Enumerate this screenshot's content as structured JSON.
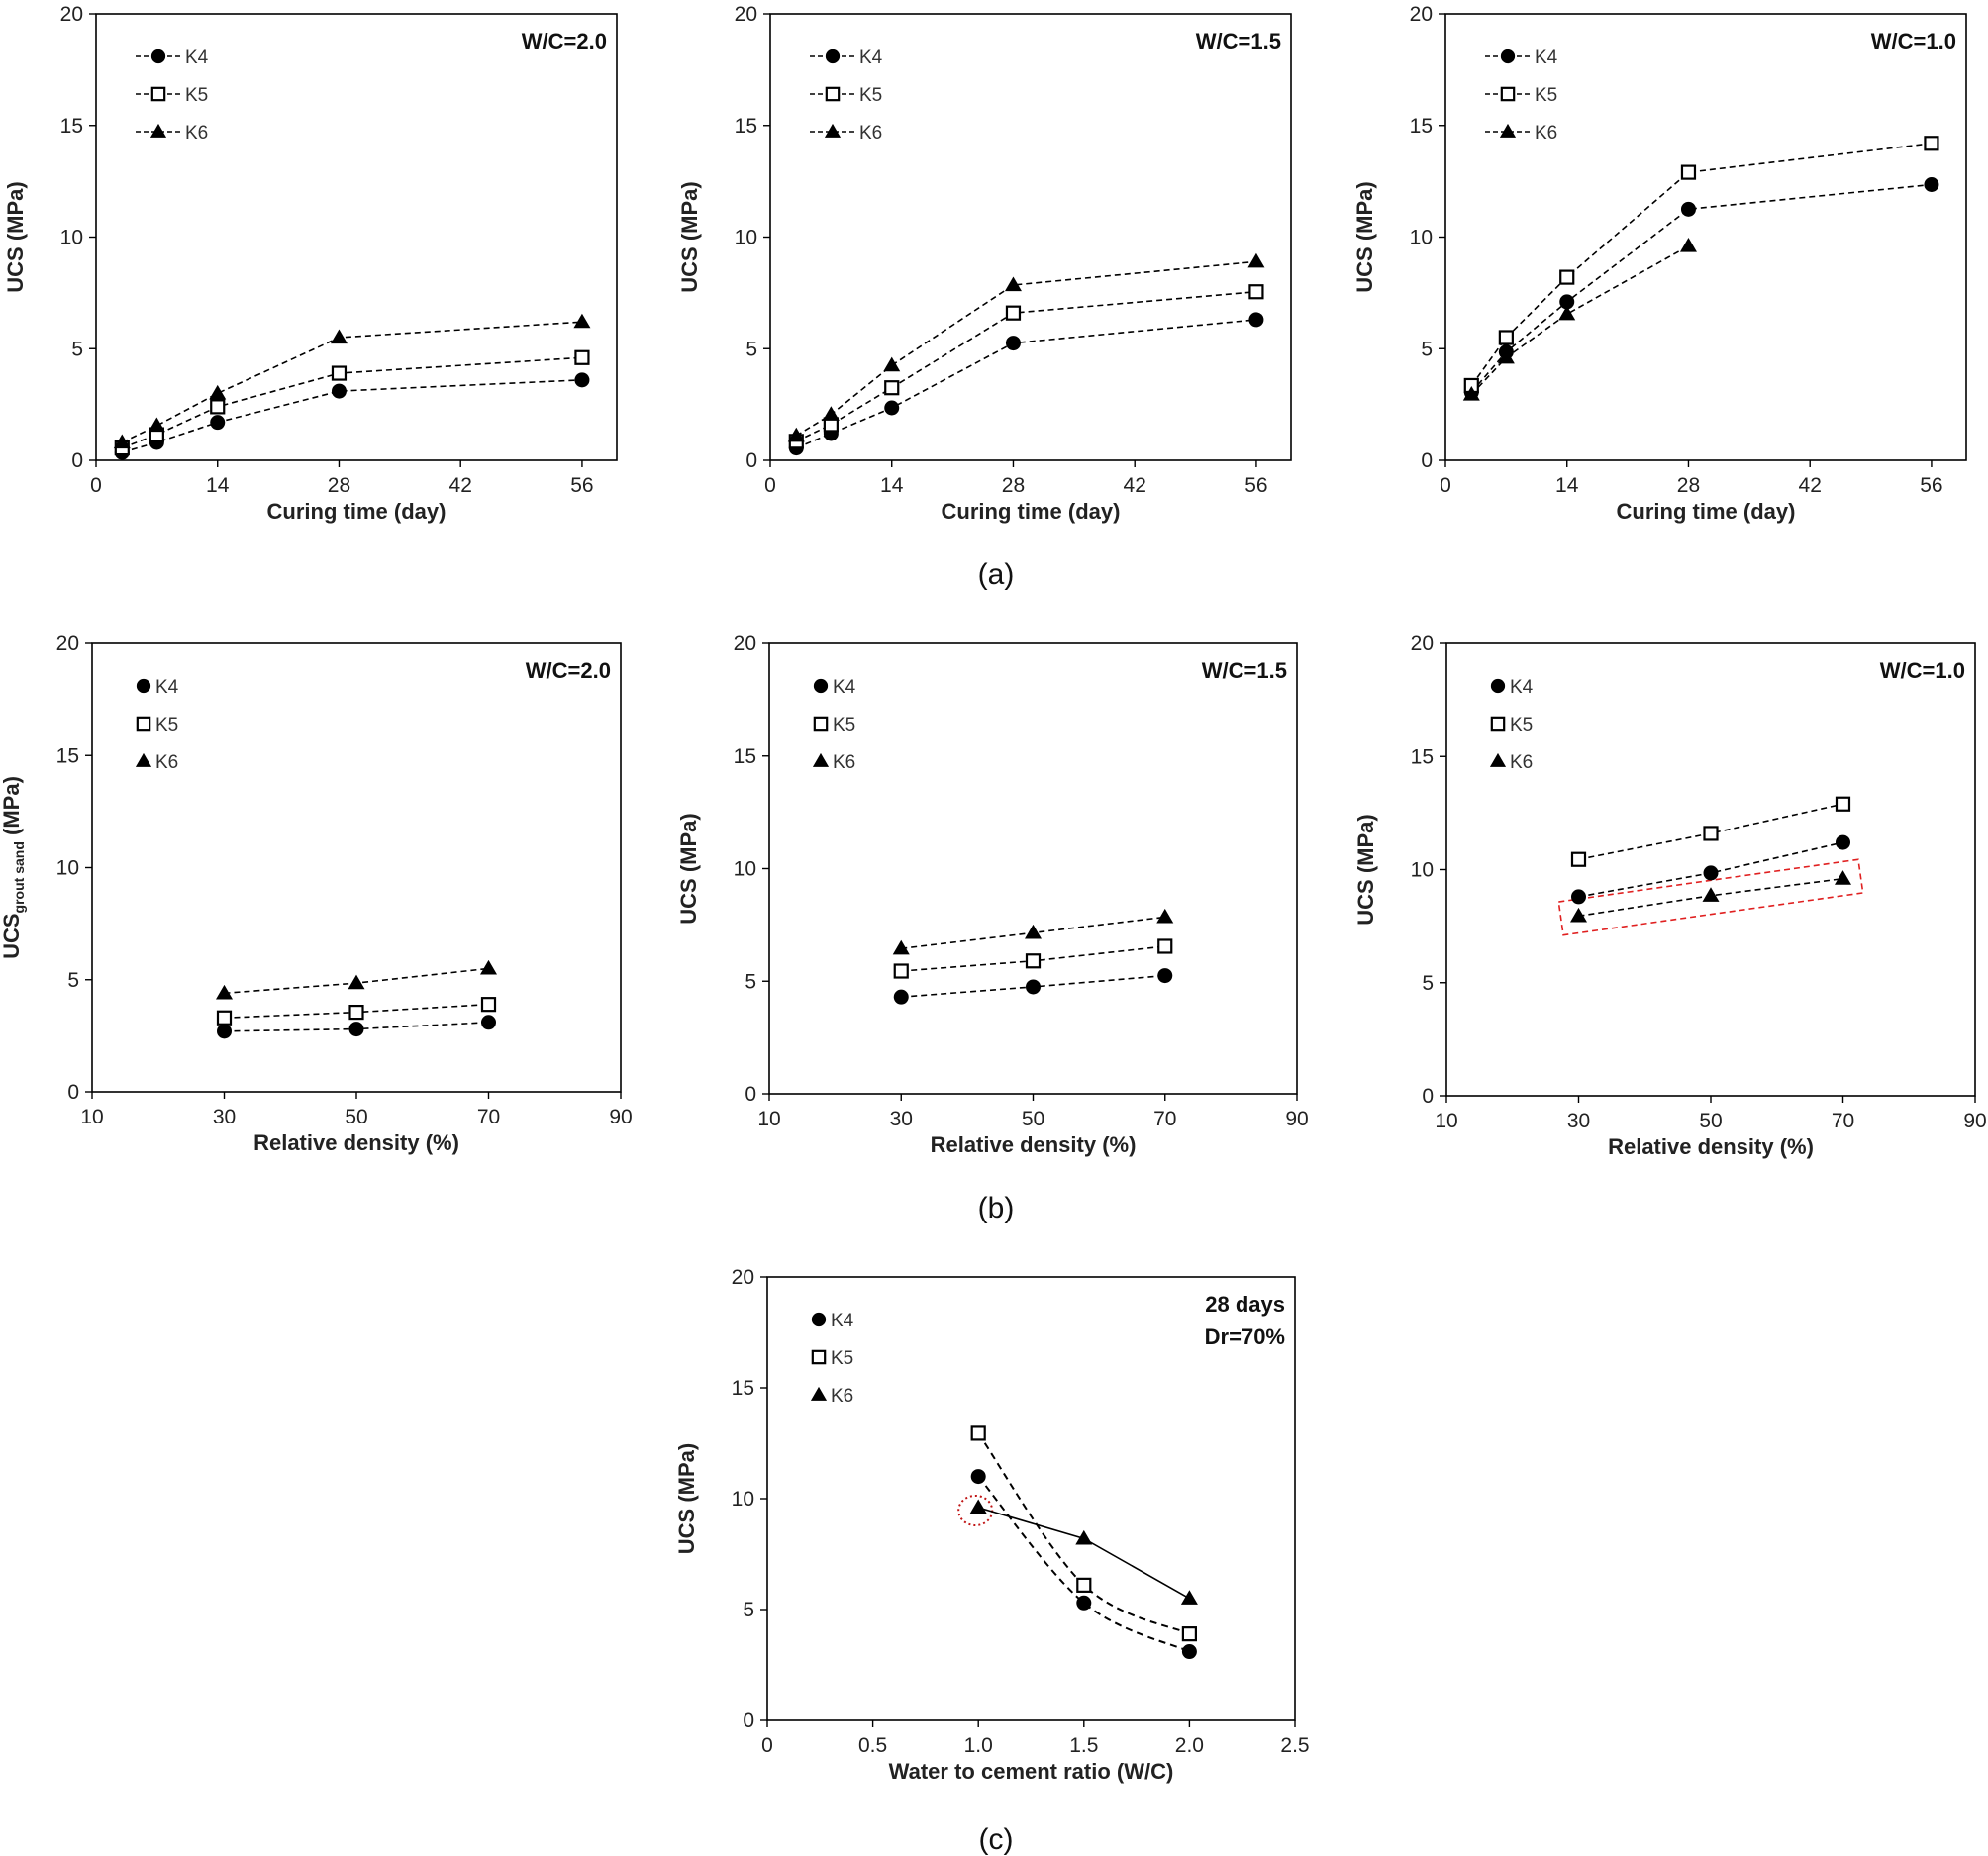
{
  "colors": {
    "marker": "#000000",
    "highlight": "#e02020",
    "circle_highlight": "#c01515"
  },
  "captions": [
    "(a)",
    "(b)",
    "(c)"
  ],
  "chart_data": [
    {
      "type": "line",
      "panel": "(a)",
      "annotation": [
        "W/C=2.0"
      ],
      "xlabel": "Curing time (day)",
      "ylabel": "UCS (MPa)",
      "xlim": [
        0,
        60
      ],
      "ylim": [
        0,
        20
      ],
      "xticks": [
        0,
        14,
        28,
        42,
        56
      ],
      "yticks": [
        0,
        5,
        10,
        15,
        20
      ],
      "legend": "top-left",
      "series": [
        {
          "name": "K4",
          "marker": "circle-filled",
          "line": "dashed",
          "x": [
            3,
            7,
            14,
            28,
            56
          ],
          "y": [
            0.35,
            0.8,
            1.7,
            3.1,
            3.6
          ]
        },
        {
          "name": "K5",
          "marker": "square-open",
          "line": "dashed",
          "x": [
            3,
            7,
            14,
            28,
            56
          ],
          "y": [
            0.55,
            1.15,
            2.4,
            3.9,
            4.6
          ]
        },
        {
          "name": "K6",
          "marker": "triangle-filled",
          "line": "dashed",
          "x": [
            3,
            7,
            14,
            28,
            56
          ],
          "y": [
            0.8,
            1.55,
            3.0,
            5.5,
            6.2
          ]
        }
      ]
    },
    {
      "type": "line",
      "panel": "(a)",
      "annotation": [
        "W/C=1.5"
      ],
      "xlabel": "Curing time (day)",
      "ylabel": "UCS (MPa)",
      "xlim": [
        0,
        60
      ],
      "ylim": [
        0,
        20
      ],
      "xticks": [
        0,
        14,
        28,
        42,
        56
      ],
      "yticks": [
        0,
        5,
        10,
        15,
        20
      ],
      "legend": "top-left",
      "series": [
        {
          "name": "K4",
          "marker": "circle-filled",
          "line": "dashed",
          "x": [
            3,
            7,
            14,
            28,
            56
          ],
          "y": [
            0.55,
            1.2,
            2.35,
            5.25,
            6.3
          ]
        },
        {
          "name": "K5",
          "marker": "square-open",
          "line": "dashed",
          "x": [
            3,
            7,
            14,
            28,
            56
          ],
          "y": [
            0.85,
            1.6,
            3.25,
            6.6,
            7.55
          ]
        },
        {
          "name": "K6",
          "marker": "triangle-filled",
          "line": "dashed",
          "x": [
            3,
            7,
            14,
            28,
            56
          ],
          "y": [
            1.1,
            2.05,
            4.25,
            7.85,
            8.9
          ]
        }
      ]
    },
    {
      "type": "line",
      "panel": "(a)",
      "annotation": [
        "W/C=1.0"
      ],
      "xlabel": "Curing time (day)",
      "ylabel": "UCS (MPa)",
      "xlim": [
        0,
        60
      ],
      "ylim": [
        0,
        20
      ],
      "xticks": [
        0,
        14,
        28,
        42,
        56
      ],
      "yticks": [
        0,
        5,
        10,
        15,
        20
      ],
      "legend": "top-left",
      "series": [
        {
          "name": "K4",
          "marker": "circle-filled",
          "line": "dashed",
          "x": [
            3,
            7,
            14,
            28,
            56
          ],
          "y": [
            3.05,
            4.85,
            7.1,
            11.25,
            12.35
          ]
        },
        {
          "name": "K5",
          "marker": "square-open",
          "line": "dashed",
          "x": [
            3,
            7,
            14,
            28,
            56
          ],
          "y": [
            3.35,
            5.5,
            8.2,
            12.9,
            14.2
          ]
        },
        {
          "name": "K6",
          "marker": "triangle-filled",
          "line": "dashed",
          "x": [
            3,
            7,
            14,
            28,
            56
          ],
          "y": [
            2.95,
            4.6,
            6.55,
            9.6,
            null
          ]
        }
      ]
    },
    {
      "type": "line",
      "panel": "(b)",
      "annotation": [
        "W/C=2.0"
      ],
      "xlabel": "Relative density (%)",
      "ylabel": "UCS",
      "ylabel_subscript": "grout sand",
      "ylabel_suffix": " (MPa)",
      "xlim": [
        10,
        90
      ],
      "ylim": [
        0,
        20
      ],
      "xticks": [
        10,
        30,
        50,
        70,
        90
      ],
      "yticks": [
        0,
        5,
        10,
        15,
        20
      ],
      "legend": "top-left",
      "series": [
        {
          "name": "K4",
          "marker": "circle-filled",
          "line": "dashed",
          "x": [
            30,
            50,
            70
          ],
          "y": [
            2.7,
            2.8,
            3.1
          ]
        },
        {
          "name": "K5",
          "marker": "square-open",
          "line": "dashed",
          "x": [
            30,
            50,
            70
          ],
          "y": [
            3.3,
            3.55,
            3.9
          ]
        },
        {
          "name": "K6",
          "marker": "triangle-filled",
          "line": "dashed",
          "x": [
            30,
            50,
            70
          ],
          "y": [
            4.4,
            4.85,
            5.5
          ]
        }
      ]
    },
    {
      "type": "line",
      "panel": "(b)",
      "annotation": [
        "W/C=1.5"
      ],
      "xlabel": "Relative density (%)",
      "ylabel": "UCS (MPa)",
      "xlim": [
        10,
        90
      ],
      "ylim": [
        0,
        20
      ],
      "xticks": [
        10,
        30,
        50,
        70,
        90
      ],
      "yticks": [
        0,
        5,
        10,
        15,
        20
      ],
      "legend": "top-left",
      "series": [
        {
          "name": "K4",
          "marker": "circle-filled",
          "line": "dashed",
          "x": [
            30,
            50,
            70
          ],
          "y": [
            4.3,
            4.75,
            5.25
          ]
        },
        {
          "name": "K5",
          "marker": "square-open",
          "line": "dashed",
          "x": [
            30,
            50,
            70
          ],
          "y": [
            5.45,
            5.9,
            6.55
          ]
        },
        {
          "name": "K6",
          "marker": "triangle-filled",
          "line": "dashed",
          "x": [
            30,
            50,
            70
          ],
          "y": [
            6.45,
            7.15,
            7.85
          ]
        }
      ]
    },
    {
      "type": "line",
      "panel": "(b)",
      "annotation": [
        "W/C=1.0"
      ],
      "xlabel": "Relative density (%)",
      "ylabel": "UCS (MPa)",
      "xlim": [
        10,
        90
      ],
      "ylim": [
        0,
        20
      ],
      "xticks": [
        10,
        30,
        50,
        70,
        90
      ],
      "yticks": [
        0,
        5,
        10,
        15,
        20
      ],
      "legend": "top-left",
      "highlight_series": "K6",
      "series": [
        {
          "name": "K4",
          "marker": "circle-filled",
          "line": "dashed",
          "x": [
            30,
            50,
            70
          ],
          "y": [
            8.8,
            9.85,
            11.2
          ]
        },
        {
          "name": "K5",
          "marker": "square-open",
          "line": "dashed",
          "x": [
            30,
            50,
            70
          ],
          "y": [
            10.45,
            11.6,
            12.9
          ]
        },
        {
          "name": "K6",
          "marker": "triangle-filled",
          "line": "dashed",
          "x": [
            30,
            50,
            70
          ],
          "y": [
            7.95,
            8.85,
            9.6
          ]
        }
      ]
    },
    {
      "type": "line",
      "panel": "(c)",
      "annotation": [
        "28 days",
        "Dr=70%"
      ],
      "xlabel": "Water to cement ratio (W/C)",
      "ylabel": "UCS (MPa)",
      "xlim": [
        0,
        2.5
      ],
      "ylim": [
        0,
        20
      ],
      "xticks": [
        "0",
        "0.5",
        "1.0",
        "1.5",
        "2.0",
        "2.5"
      ],
      "yticks": [
        0,
        5,
        10,
        15,
        20
      ],
      "legend": "top-left",
      "highlight_point": {
        "series": "K6",
        "x": 1.0
      },
      "series": [
        {
          "name": "K4",
          "marker": "circle-filled",
          "line": "dashed-curve",
          "x": [
            1.0,
            1.5,
            2.0
          ],
          "y": [
            11.0,
            5.3,
            3.1
          ]
        },
        {
          "name": "K5",
          "marker": "square-open",
          "line": "dashed-curve",
          "x": [
            1.0,
            1.5,
            2.0
          ],
          "y": [
            12.95,
            6.1,
            3.9
          ]
        },
        {
          "name": "K6",
          "marker": "triangle-filled",
          "line": "solid",
          "x": [
            1.0,
            1.5,
            2.0
          ],
          "y": [
            9.6,
            8.2,
            5.5
          ]
        }
      ]
    }
  ]
}
